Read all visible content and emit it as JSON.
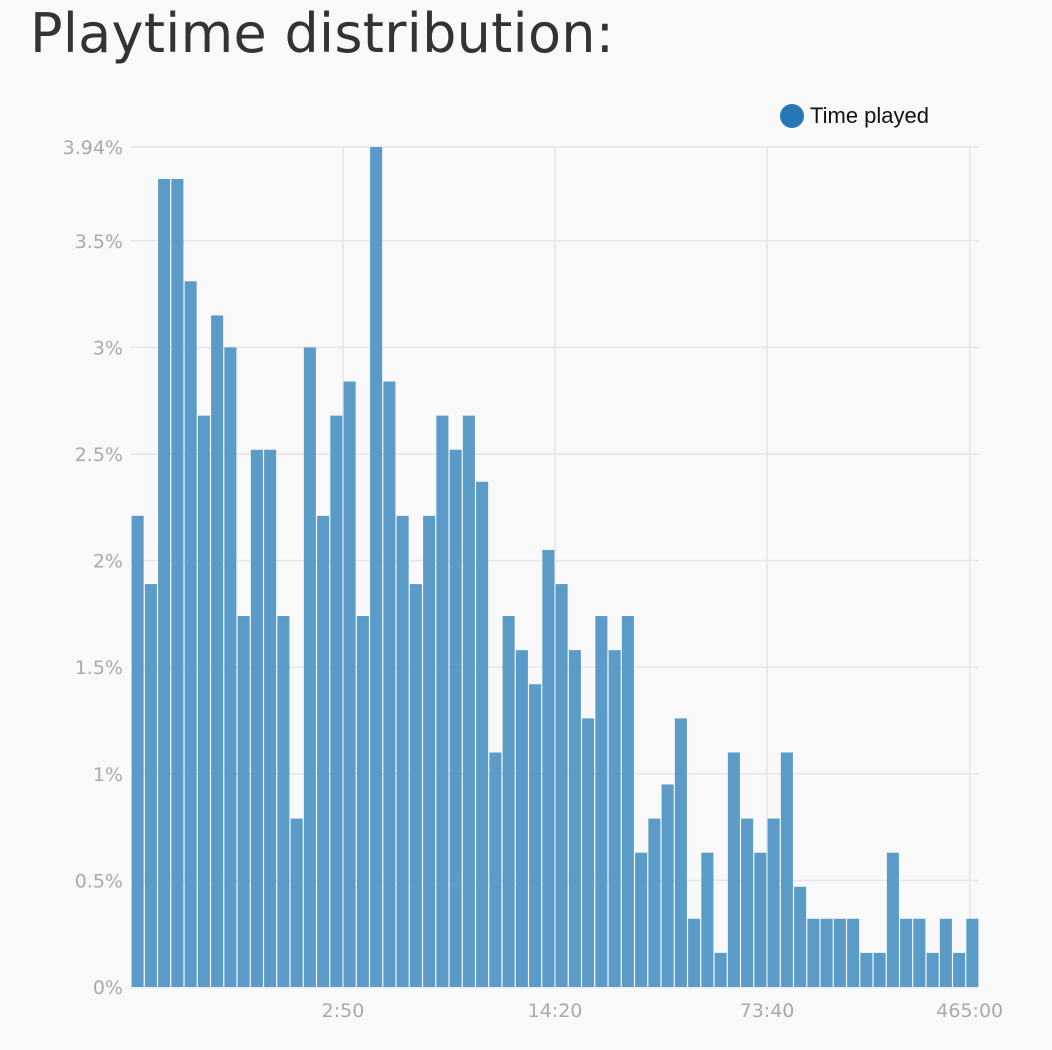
{
  "page_title": "Playtime distribution:",
  "chart_data": {
    "type": "bar",
    "legend": [
      "Time played"
    ],
    "colors": {
      "bar": "#5b9bc8",
      "legend_dot": "#2878b8",
      "grid": "#e6e6e6"
    },
    "ylim": [
      0,
      3.94
    ],
    "y_ticks": [
      {
        "value": 0,
        "label": "0%"
      },
      {
        "value": 0.5,
        "label": "0.5%"
      },
      {
        "value": 1,
        "label": "1%"
      },
      {
        "value": 1.5,
        "label": "1.5%"
      },
      {
        "value": 2,
        "label": "2%"
      },
      {
        "value": 2.5,
        "label": "2.5%"
      },
      {
        "value": 3,
        "label": "3%"
      },
      {
        "value": 3.5,
        "label": "3.5%"
      },
      {
        "value": 3.94,
        "label": "3.94%"
      }
    ],
    "x_ticks": [
      {
        "bin": 16,
        "label": "2:50"
      },
      {
        "bin": 32,
        "label": "14:20"
      },
      {
        "bin": 48,
        "label": "73:40"
      },
      {
        "bin": 63.3,
        "label": "465:00"
      }
    ],
    "values": [
      2.21,
      1.89,
      3.79,
      3.79,
      3.31,
      2.68,
      3.15,
      3.0,
      1.74,
      2.52,
      2.52,
      1.74,
      0.79,
      3.0,
      2.21,
      2.68,
      2.84,
      1.74,
      3.94,
      2.84,
      2.21,
      1.89,
      2.21,
      2.68,
      2.52,
      2.68,
      2.37,
      1.1,
      1.74,
      1.58,
      1.42,
      2.05,
      1.89,
      1.58,
      1.26,
      1.74,
      1.58,
      1.74,
      0.63,
      0.79,
      0.95,
      1.26,
      0.32,
      0.63,
      0.16,
      1.1,
      0.79,
      0.63,
      0.79,
      1.1,
      0.47,
      0.32,
      0.32,
      0.32,
      0.32,
      0.16,
      0.16,
      0.63,
      0.32,
      0.32,
      0.16,
      0.32,
      0.16,
      0.32
    ]
  }
}
